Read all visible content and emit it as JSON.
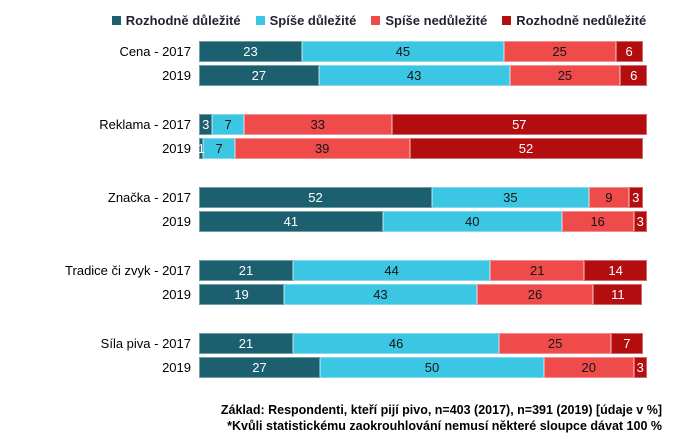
{
  "chart_data": {
    "type": "bar",
    "orientation": "horizontal",
    "stacked": true,
    "unit": "%",
    "xlim": [
      0,
      100
    ],
    "grid": false,
    "legend_position": "top",
    "series_names": [
      "Rozhodně důležité",
      "Spíše důležité",
      "Spíše nedůležité",
      "Rozhodně nedůležité"
    ],
    "series_colors": [
      "#1C5F6E",
      "#3BC6E3",
      "#EF4B4B",
      "#B30D10"
    ],
    "series_text_colors": [
      "#ffffff",
      "#151515",
      "#151515",
      "#ffffff"
    ],
    "groups": [
      {
        "name": "Cena",
        "rows": [
          {
            "label": "Cena - 2017",
            "values": [
              23,
              45,
              25,
              6
            ]
          },
          {
            "label": "2019",
            "values": [
              27,
              43,
              25,
              6
            ]
          }
        ]
      },
      {
        "name": "Reklama",
        "rows": [
          {
            "label": "Reklama - 2017",
            "values": [
              3,
              7,
              33,
              57
            ]
          },
          {
            "label": "2019",
            "values": [
              1,
              7,
              39,
              52
            ]
          }
        ]
      },
      {
        "name": "Značka",
        "rows": [
          {
            "label": "Značka - 2017",
            "values": [
              52,
              35,
              9,
              3
            ]
          },
          {
            "label": "2019",
            "values": [
              41,
              40,
              16,
              3
            ]
          }
        ]
      },
      {
        "name": "Tradice či zvyk",
        "rows": [
          {
            "label": "Tradice či zvyk - 2017",
            "values": [
              21,
              44,
              21,
              14
            ]
          },
          {
            "label": "2019",
            "values": [
              19,
              43,
              26,
              11
            ]
          }
        ]
      },
      {
        "name": "Síla piva",
        "rows": [
          {
            "label": "Síla piva - 2017",
            "values": [
              21,
              46,
              25,
              7
            ]
          },
          {
            "label": "2019",
            "values": [
              27,
              50,
              20,
              3
            ]
          }
        ]
      }
    ]
  },
  "footer": {
    "line1": "Základ: Respondenti, kteří pijí pivo, n=403 (2017), n=391 (2019) [údaje v %]",
    "line2": "*Kvůli statistickému zaokrouhlování nemusí některé sloupce dávat 100 %"
  }
}
